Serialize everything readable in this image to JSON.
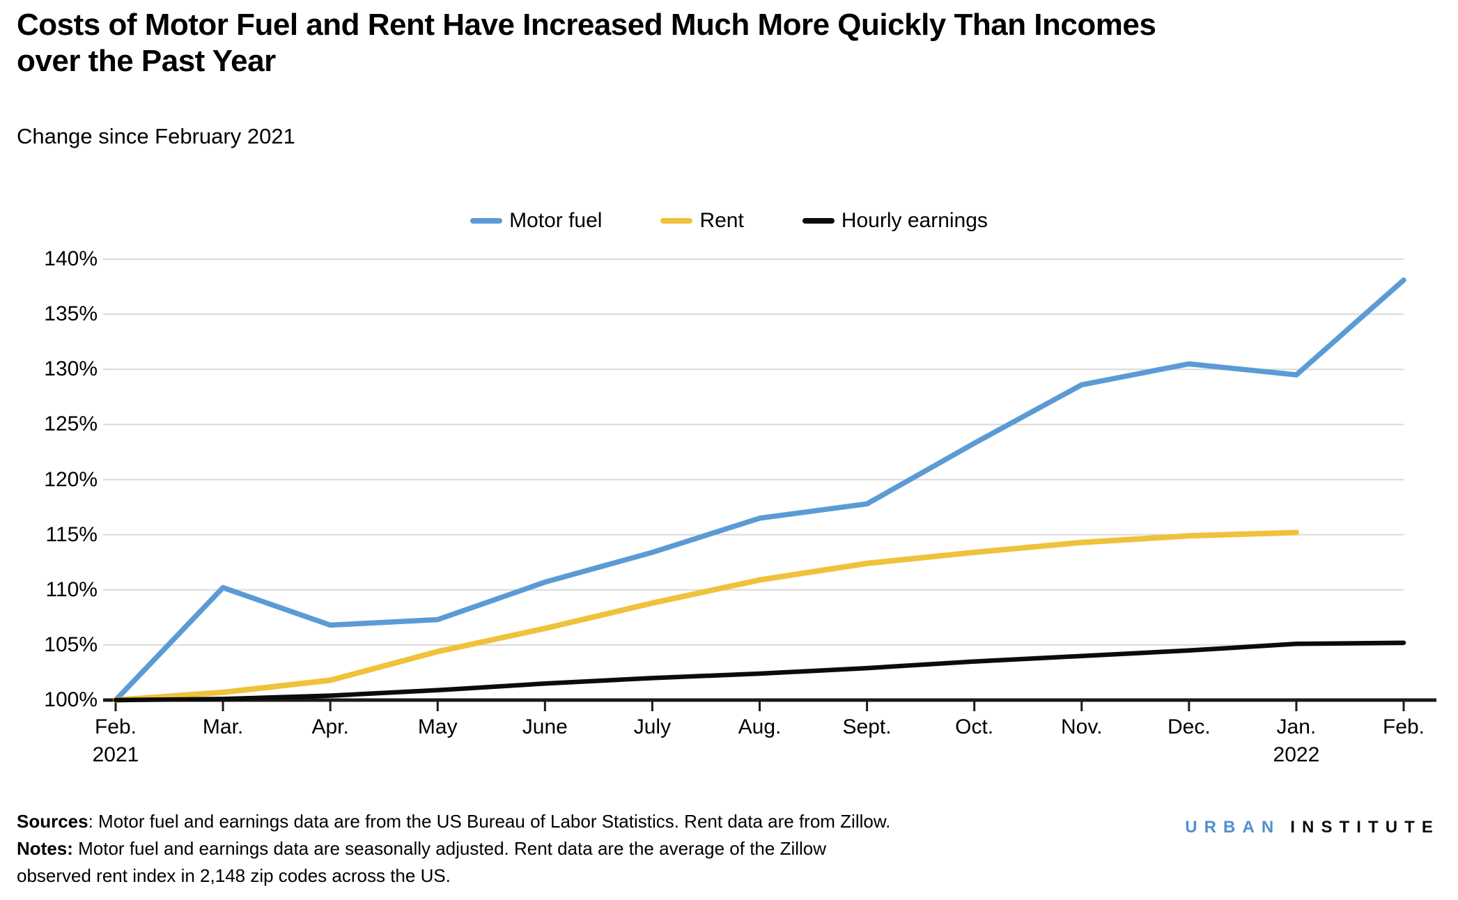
{
  "header": {
    "title": "Costs of Motor Fuel and Rent Have Increased Much More Quickly Than Incomes over the Past Year",
    "subtitle": "Change since February 2021"
  },
  "chart_data": {
    "type": "line",
    "title": "Costs of Motor Fuel and Rent Have Increased Much More Quickly Than Incomes over the Past Year",
    "subtitle": "Change since February 2021",
    "legend_position": "top-center",
    "grid": "horizontal",
    "ylim": [
      100,
      140
    ],
    "yticks": [
      100,
      105,
      110,
      115,
      120,
      125,
      130,
      135,
      140
    ],
    "ytick_suffix": "%",
    "x_categories": [
      {
        "label": "Feb.",
        "sub": "2021"
      },
      {
        "label": "Mar.",
        "sub": ""
      },
      {
        "label": "Apr.",
        "sub": ""
      },
      {
        "label": "May",
        "sub": ""
      },
      {
        "label": "June",
        "sub": ""
      },
      {
        "label": "July",
        "sub": ""
      },
      {
        "label": "Aug.",
        "sub": ""
      },
      {
        "label": "Sept.",
        "sub": ""
      },
      {
        "label": "Oct.",
        "sub": ""
      },
      {
        "label": "Nov.",
        "sub": ""
      },
      {
        "label": "Dec.",
        "sub": ""
      },
      {
        "label": "Jan.",
        "sub": "2022"
      },
      {
        "label": "Feb.",
        "sub": ""
      }
    ],
    "series": [
      {
        "name": "Motor fuel",
        "color": "#5B9BD5",
        "width": 7.5,
        "values": [
          100,
          110.2,
          106.8,
          107.3,
          110.7,
          113.4,
          116.5,
          117.8,
          123.3,
          128.6,
          130.5,
          129.5,
          138.1
        ]
      },
      {
        "name": "Rent",
        "color": "#EFC23B",
        "width": 8,
        "values": [
          100,
          100.7,
          101.8,
          104.4,
          106.5,
          108.8,
          110.9,
          112.4,
          113.4,
          114.3,
          114.9,
          115.2,
          null
        ]
      },
      {
        "name": "Hourly earnings",
        "color": "#0B0B0B",
        "width": 6.5,
        "values": [
          100,
          100.1,
          100.4,
          100.9,
          101.5,
          102.0,
          102.4,
          102.9,
          103.5,
          104.0,
          104.5,
          105.1,
          105.2
        ]
      }
    ]
  },
  "footer": {
    "sources_label": "Sources",
    "sources_rest": ": Motor fuel and earnings data are from the US Bureau of Labor Statistics. Rent data are from Zillow.",
    "notes_label": "Notes:",
    "notes_rest": " Motor fuel and earnings data are seasonally adjusted. Rent data are the average of the Zillow",
    "notes_line2": "observed rent index in 2,148 zip codes across the US."
  },
  "logo": {
    "part1": "URBAN",
    "part2": "INSTITUTE"
  },
  "colors": {
    "gridline": "#D9D9D9",
    "axis": "#1A1A1A",
    "logo_urban": "#4E90D1",
    "logo_institute": "#0B0B0B"
  }
}
